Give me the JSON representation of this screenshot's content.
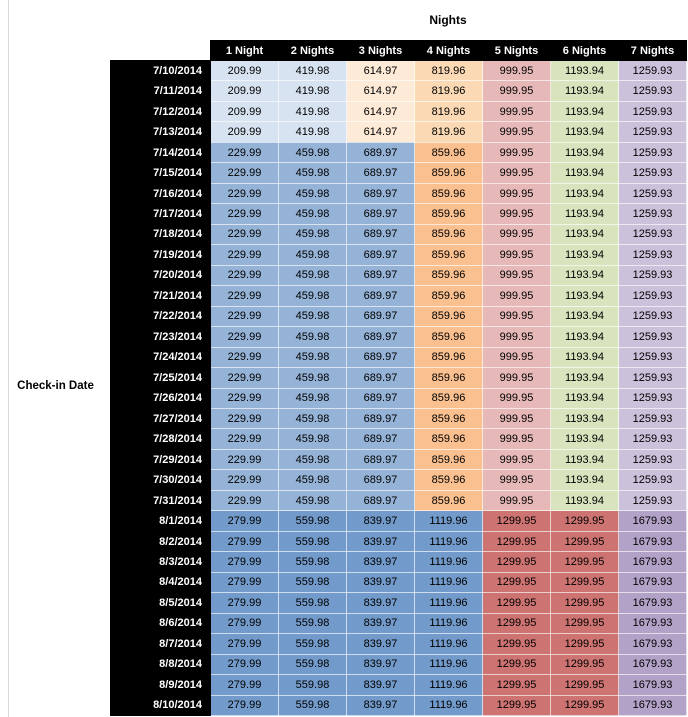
{
  "title": "Nights",
  "row_axis_label": "Check-in Date",
  "colors": {
    "header_bg": "#000000",
    "header_text": "#ffffff",
    "band_cell_colors": [
      [
        "#d7e3f1",
        "#d7e3f1",
        "#fdead7",
        "#fad9b4",
        "#e6b9b8",
        "#d7e4bd",
        "#ccc1da"
      ],
      [
        "#95b3d7",
        "#95b3d7",
        "#95b3d7",
        "#fac090",
        "#e6b9b8",
        "#d7e4bd",
        "#ccc1da"
      ],
      [
        "#729aca",
        "#729aca",
        "#729aca",
        "#729aca",
        "#cd7371",
        "#cd7371",
        "#b3a2c7"
      ]
    ]
  },
  "chart_data": {
    "type": "table",
    "title": "Nights",
    "row_axis_label": "Check-in Date",
    "columns": [
      "1 Night",
      "2 Nights",
      "3 Nights",
      "4 Nights",
      "5 Nights",
      "6 Nights",
      "7 Nights"
    ],
    "rows": [
      {
        "date": "7/10/2014",
        "band": 0,
        "values": [
          209.99,
          419.98,
          614.97,
          819.96,
          999.95,
          1193.94,
          1259.93
        ]
      },
      {
        "date": "7/11/2014",
        "band": 0,
        "values": [
          209.99,
          419.98,
          614.97,
          819.96,
          999.95,
          1193.94,
          1259.93
        ]
      },
      {
        "date": "7/12/2014",
        "band": 0,
        "values": [
          209.99,
          419.98,
          614.97,
          819.96,
          999.95,
          1193.94,
          1259.93
        ]
      },
      {
        "date": "7/13/2014",
        "band": 0,
        "values": [
          209.99,
          419.98,
          614.97,
          819.96,
          999.95,
          1193.94,
          1259.93
        ]
      },
      {
        "date": "7/14/2014",
        "band": 1,
        "values": [
          229.99,
          459.98,
          689.97,
          859.96,
          999.95,
          1193.94,
          1259.93
        ]
      },
      {
        "date": "7/15/2014",
        "band": 1,
        "values": [
          229.99,
          459.98,
          689.97,
          859.96,
          999.95,
          1193.94,
          1259.93
        ]
      },
      {
        "date": "7/16/2014",
        "band": 1,
        "values": [
          229.99,
          459.98,
          689.97,
          859.96,
          999.95,
          1193.94,
          1259.93
        ]
      },
      {
        "date": "7/17/2014",
        "band": 1,
        "values": [
          229.99,
          459.98,
          689.97,
          859.96,
          999.95,
          1193.94,
          1259.93
        ]
      },
      {
        "date": "7/18/2014",
        "band": 1,
        "values": [
          229.99,
          459.98,
          689.97,
          859.96,
          999.95,
          1193.94,
          1259.93
        ]
      },
      {
        "date": "7/19/2014",
        "band": 1,
        "values": [
          229.99,
          459.98,
          689.97,
          859.96,
          999.95,
          1193.94,
          1259.93
        ]
      },
      {
        "date": "7/20/2014",
        "band": 1,
        "values": [
          229.99,
          459.98,
          689.97,
          859.96,
          999.95,
          1193.94,
          1259.93
        ]
      },
      {
        "date": "7/21/2014",
        "band": 1,
        "values": [
          229.99,
          459.98,
          689.97,
          859.96,
          999.95,
          1193.94,
          1259.93
        ]
      },
      {
        "date": "7/22/2014",
        "band": 1,
        "values": [
          229.99,
          459.98,
          689.97,
          859.96,
          999.95,
          1193.94,
          1259.93
        ]
      },
      {
        "date": "7/23/2014",
        "band": 1,
        "values": [
          229.99,
          459.98,
          689.97,
          859.96,
          999.95,
          1193.94,
          1259.93
        ]
      },
      {
        "date": "7/24/2014",
        "band": 1,
        "values": [
          229.99,
          459.98,
          689.97,
          859.96,
          999.95,
          1193.94,
          1259.93
        ]
      },
      {
        "date": "7/25/2014",
        "band": 1,
        "values": [
          229.99,
          459.98,
          689.97,
          859.96,
          999.95,
          1193.94,
          1259.93
        ]
      },
      {
        "date": "7/26/2014",
        "band": 1,
        "values": [
          229.99,
          459.98,
          689.97,
          859.96,
          999.95,
          1193.94,
          1259.93
        ]
      },
      {
        "date": "7/27/2014",
        "band": 1,
        "values": [
          229.99,
          459.98,
          689.97,
          859.96,
          999.95,
          1193.94,
          1259.93
        ]
      },
      {
        "date": "7/28/2014",
        "band": 1,
        "values": [
          229.99,
          459.98,
          689.97,
          859.96,
          999.95,
          1193.94,
          1259.93
        ]
      },
      {
        "date": "7/29/2014",
        "band": 1,
        "values": [
          229.99,
          459.98,
          689.97,
          859.96,
          999.95,
          1193.94,
          1259.93
        ]
      },
      {
        "date": "7/30/2014",
        "band": 1,
        "values": [
          229.99,
          459.98,
          689.97,
          859.96,
          999.95,
          1193.94,
          1259.93
        ]
      },
      {
        "date": "7/31/2014",
        "band": 1,
        "values": [
          229.99,
          459.98,
          689.97,
          859.96,
          999.95,
          1193.94,
          1259.93
        ]
      },
      {
        "date": "8/1/2014",
        "band": 2,
        "values": [
          279.99,
          559.98,
          839.97,
          1119.96,
          1299.95,
          1299.95,
          1679.93
        ]
      },
      {
        "date": "8/2/2014",
        "band": 2,
        "values": [
          279.99,
          559.98,
          839.97,
          1119.96,
          1299.95,
          1299.95,
          1679.93
        ]
      },
      {
        "date": "8/3/2014",
        "band": 2,
        "values": [
          279.99,
          559.98,
          839.97,
          1119.96,
          1299.95,
          1299.95,
          1679.93
        ]
      },
      {
        "date": "8/4/2014",
        "band": 2,
        "values": [
          279.99,
          559.98,
          839.97,
          1119.96,
          1299.95,
          1299.95,
          1679.93
        ]
      },
      {
        "date": "8/5/2014",
        "band": 2,
        "values": [
          279.99,
          559.98,
          839.97,
          1119.96,
          1299.95,
          1299.95,
          1679.93
        ]
      },
      {
        "date": "8/6/2014",
        "band": 2,
        "values": [
          279.99,
          559.98,
          839.97,
          1119.96,
          1299.95,
          1299.95,
          1679.93
        ]
      },
      {
        "date": "8/7/2014",
        "band": 2,
        "values": [
          279.99,
          559.98,
          839.97,
          1119.96,
          1299.95,
          1299.95,
          1679.93
        ]
      },
      {
        "date": "8/8/2014",
        "band": 2,
        "values": [
          279.99,
          559.98,
          839.97,
          1119.96,
          1299.95,
          1299.95,
          1679.93
        ]
      },
      {
        "date": "8/9/2014",
        "band": 2,
        "values": [
          279.99,
          559.98,
          839.97,
          1119.96,
          1299.95,
          1299.95,
          1679.93
        ]
      },
      {
        "date": "8/10/2014",
        "band": 2,
        "values": [
          279.99,
          559.98,
          839.97,
          1119.96,
          1299.95,
          1299.95,
          1679.93
        ]
      }
    ]
  }
}
